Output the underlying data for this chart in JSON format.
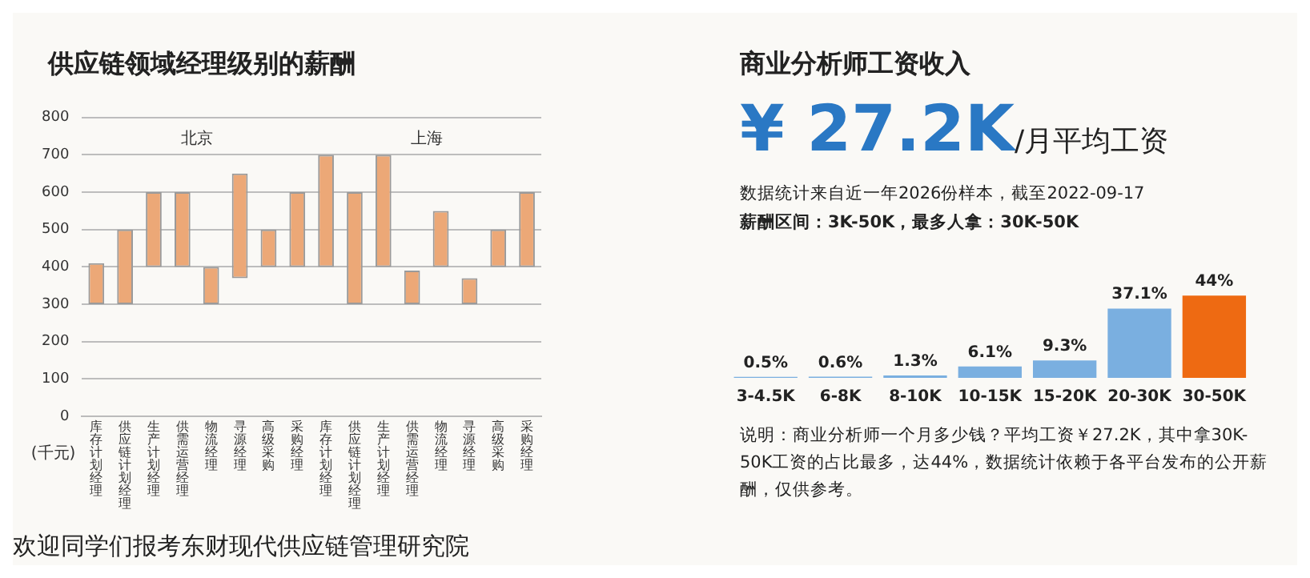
{
  "chart_data": [
    {
      "type": "bar",
      "title": "供应链领域经理级别的薪酬",
      "ylabel": "(千元)",
      "categories": [
        "库存计划经理",
        "供应链计划经理",
        "生产计划经理",
        "供需运营经理",
        "物流经理",
        "寻源经理",
        "高级采购",
        "采购经理",
        "库存计划经理",
        "供应链计划经理",
        "生产计划经理",
        "供需运营经理",
        "物流经理",
        "寻源经理",
        "高级采购",
        "采购经理"
      ],
      "base": [
        300,
        300,
        400,
        400,
        300,
        370,
        400,
        400,
        400,
        300,
        400,
        300,
        400,
        300,
        400,
        400
      ],
      "values": [
        110,
        200,
        200,
        200,
        100,
        280,
        100,
        200,
        300,
        300,
        300,
        90,
        150,
        70,
        100,
        200
      ],
      "color": "#eca877",
      "ylim": [
        0,
        800
      ],
      "yticks": [
        0,
        100,
        200,
        300,
        400,
        500,
        600,
        700,
        800
      ],
      "grid": "y",
      "legend": false,
      "annotations": [
        "北京",
        "上海",
        "欢迎同学们报考东财现代供应链管理研究院"
      ]
    },
    {
      "type": "bar",
      "title": "商业分析师工资收入",
      "categories": [
        "3-4.5K",
        "6-8K",
        "8-10K",
        "10-15K",
        "15-20K",
        "20-30K",
        "30-50K"
      ],
      "values": [
        0.5,
        0.6,
        1.3,
        6.1,
        9.3,
        37.1,
        44
      ],
      "value_labels": [
        "0.5%",
        "0.6%",
        "1.3%",
        "6.1%",
        "9.3%",
        "37.1%",
        "44%"
      ],
      "colors": [
        "#7aafe0",
        "#7aafe0",
        "#7aafe0",
        "#7aafe0",
        "#7aafe0",
        "#7aafe0",
        "#ee6a12"
      ],
      "grid": false,
      "legend": false,
      "annotations": [
        "¥ 27.2K",
        "/月平均工资",
        "数据统计来自近一年2026份样本，截至2022-09-17",
        "薪酬区间：3K-50K，最多人拿：30K-50K",
        "说明：商业分析师一个月多少钱？平均工资￥27.2K，其中拿30K-50K工资的占比最多，达44%，数据统计依赖于各平台发布的公开薪酬，仅供参考。"
      ]
    }
  ]
}
